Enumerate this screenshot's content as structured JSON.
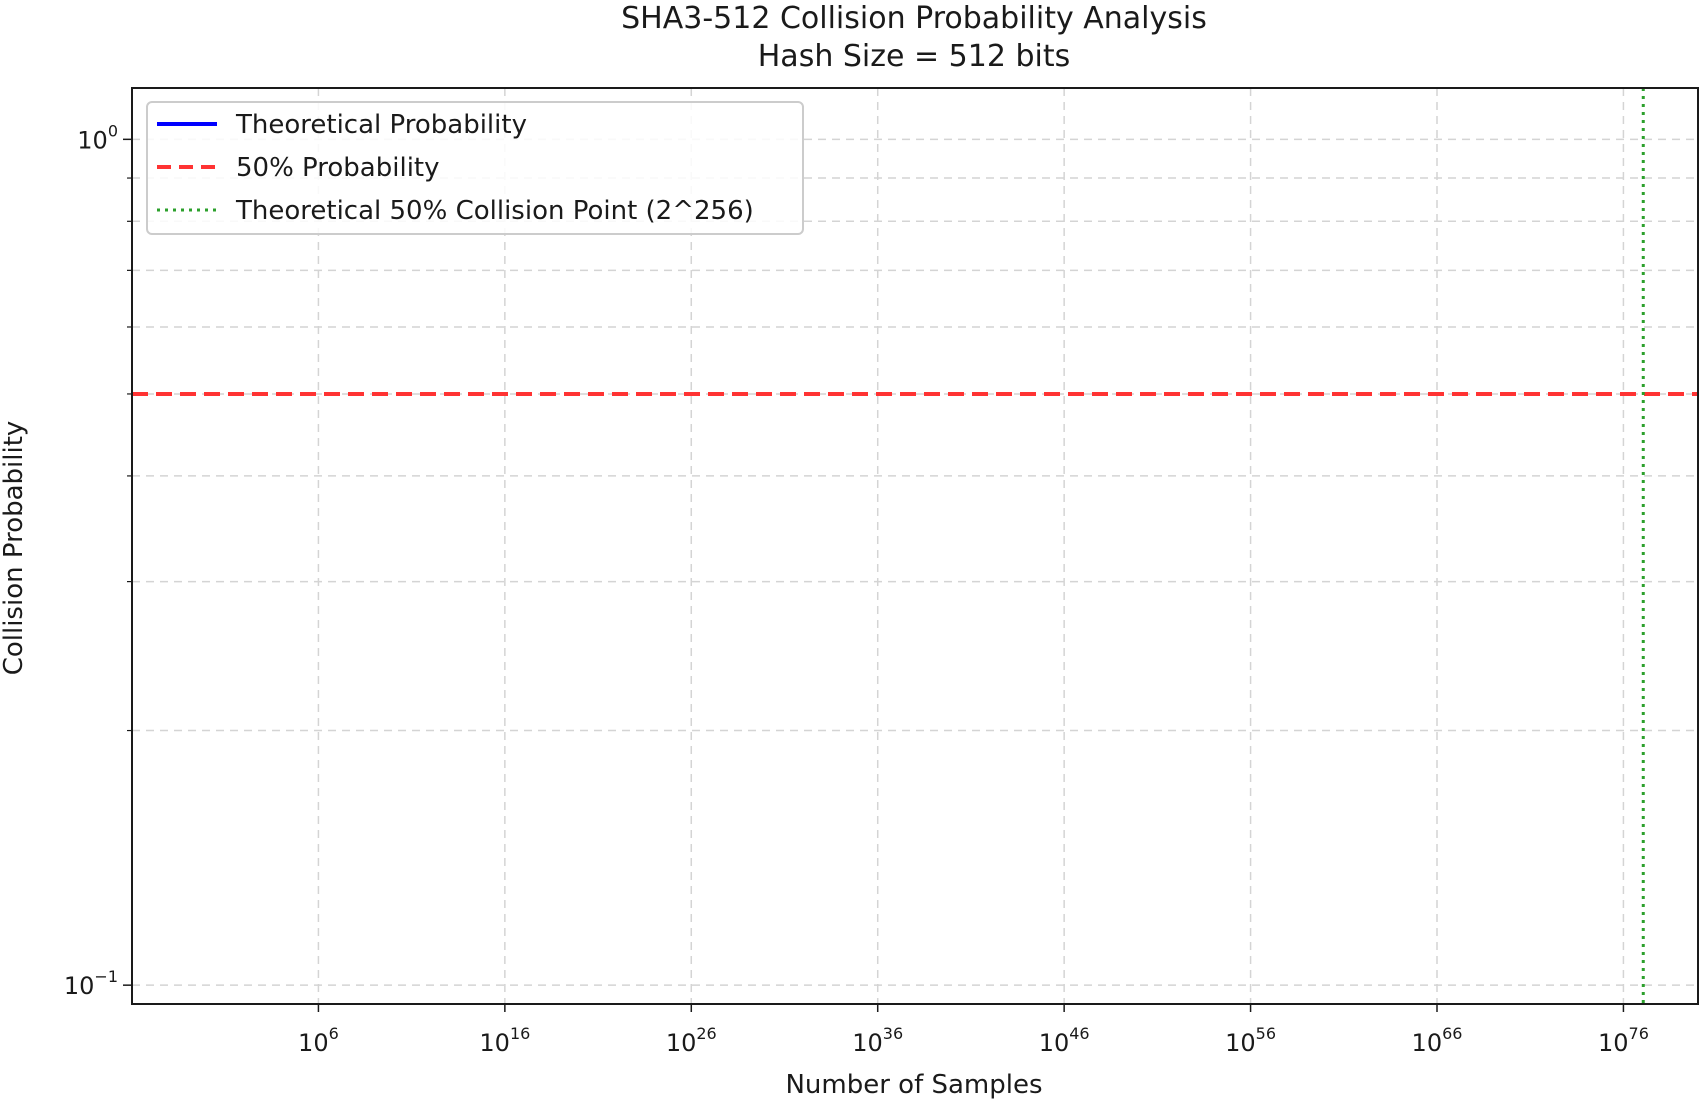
{
  "chart_data": {
    "type": "line",
    "title": "SHA3-512 Collision Probability Analysis",
    "subtitle": "Hash Size = 512 bits",
    "xlabel": "Number of Samples",
    "ylabel": "Collision Probability",
    "x_scale": "log",
    "y_scale": "log",
    "xlim": [
      0.0001,
      1e+80
    ],
    "ylim": [
      0.095,
      1.15
    ],
    "x_ticks": [
      {
        "value": 1000000.0,
        "base": "10",
        "exp": "6"
      },
      {
        "value": 1e+16,
        "base": "10",
        "exp": "16"
      },
      {
        "value": 1e+26,
        "base": "10",
        "exp": "26"
      },
      {
        "value": 1e+36,
        "base": "10",
        "exp": "36"
      },
      {
        "value": 1e+46,
        "base": "10",
        "exp": "46"
      },
      {
        "value": 1e+56,
        "base": "10",
        "exp": "56"
      },
      {
        "value": 1e+66,
        "base": "10",
        "exp": "66"
      },
      {
        "value": 1e+76,
        "base": "10",
        "exp": "76"
      }
    ],
    "y_ticks": [
      {
        "value": 1,
        "base": "10",
        "exp": "0"
      },
      {
        "value": 0.1,
        "base": "10",
        "exp": "−1"
      }
    ],
    "y_minor_ticks": [
      0.2,
      0.3,
      0.4,
      0.5,
      0.6,
      0.7,
      0.8,
      0.9
    ],
    "grid": true,
    "legend_position": "top-left",
    "series": [
      {
        "name": "Theoretical Probability",
        "color": "#0000ff",
        "style": "solid",
        "values": []
      },
      {
        "name": "50% Probability",
        "color": "#ff3333",
        "style": "dashed",
        "kind": "hline",
        "y": 0.5
      },
      {
        "name": "Theoretical 50% Collision Point (2^256)",
        "color": "#2ca02c",
        "style": "dotted",
        "kind": "vline",
        "x": 1.1579e+77
      }
    ]
  }
}
